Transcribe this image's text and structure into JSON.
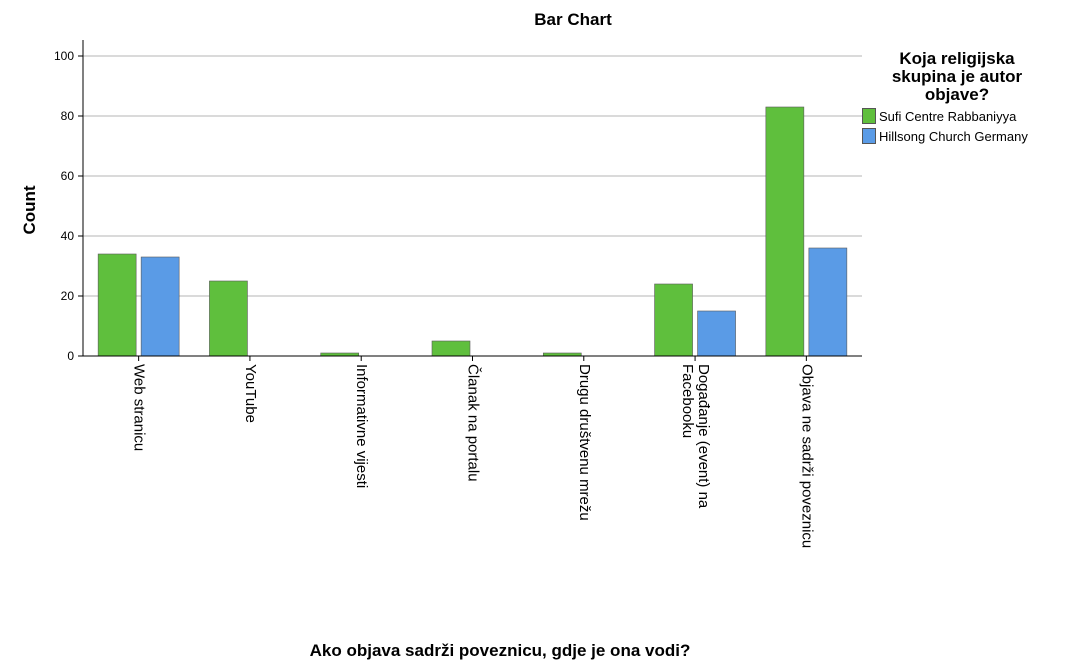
{
  "chart_data": {
    "type": "bar",
    "title": "Bar Chart",
    "xlabel": "Ako objava sadrži poveznicu, gdje je ona vodi?",
    "ylabel": "Count",
    "ylim": [
      0,
      100
    ],
    "yticks": [
      0,
      20,
      40,
      60,
      80,
      100
    ],
    "grid": true,
    "legend_position": "right",
    "categories": [
      "Web stranicu",
      "YouTube",
      "Informativne vijesti",
      "Članak na portalu",
      "Drugu društvenu mrežu",
      "Događanje (event) na Facebooku",
      "Objava ne sadrži poveznicu"
    ],
    "category_lines": [
      [
        "Web stranicu"
      ],
      [
        "YouTube"
      ],
      [
        "Informativne vijesti"
      ],
      [
        "Članak na portalu"
      ],
      [
        "Drugu društvenu mrežu"
      ],
      [
        "Događanje (event) na",
        "Facebooku"
      ],
      [
        "Objava ne sadrži poveznicu"
      ]
    ],
    "legend_title": "Koja religijska skupina je autor objave?",
    "legend_title_lines": [
      "Koja religijska",
      "skupina je autor",
      "objave?"
    ],
    "series": [
      {
        "name": "Sufi Centre Rabbaniyya",
        "color": "#5fbf3d",
        "values": [
          34,
          25,
          1,
          5,
          1,
          24,
          83
        ]
      },
      {
        "name": "Hillsong Church Germany",
        "color": "#5a9be6",
        "values": [
          33,
          0,
          0,
          0,
          0,
          15,
          36
        ]
      }
    ]
  }
}
